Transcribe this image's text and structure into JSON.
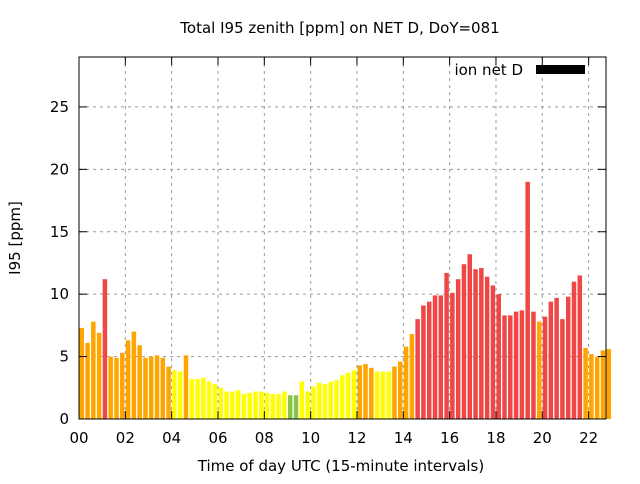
{
  "chart_data": {
    "type": "bar",
    "title": "Total I95 zenith [ppm] on NET D, DoY=081",
    "xlabel": "Time of day UTC (15-minute intervals)",
    "ylabel": "I95 [ppm]",
    "ylim": [
      0,
      29
    ],
    "xlim_hours": [
      0,
      22.75
    ],
    "x_ticks": [
      "00",
      "02",
      "04",
      "06",
      "08",
      "10",
      "12",
      "14",
      "16",
      "18",
      "20",
      "22"
    ],
    "y_ticks": [
      "0",
      "5",
      "10",
      "15",
      "20",
      "25"
    ],
    "grid": true,
    "legend": {
      "label": "ion net D",
      "placement": "top-right",
      "color": "#000000"
    },
    "interval_minutes": 15,
    "values": [
      7.3,
      6.1,
      7.8,
      6.9,
      11.2,
      5.0,
      4.9,
      5.3,
      6.3,
      7.0,
      5.9,
      4.9,
      5.0,
      5.1,
      4.9,
      4.2,
      3.9,
      3.8,
      5.1,
      3.2,
      3.2,
      3.3,
      3.0,
      2.8,
      2.5,
      2.2,
      2.2,
      2.3,
      2.0,
      2.1,
      2.2,
      2.2,
      2.1,
      2.0,
      2.0,
      2.2,
      1.9,
      1.9,
      3.0,
      2.2,
      2.6,
      2.9,
      2.8,
      3.0,
      3.1,
      3.5,
      3.7,
      3.9,
      4.3,
      4.4,
      4.1,
      3.8,
      3.8,
      3.8,
      4.2,
      4.6,
      5.8,
      6.8,
      8.0,
      9.1,
      9.4,
      9.9,
      9.9,
      11.7,
      10.1,
      11.2,
      12.4,
      13.2,
      12.0,
      12.1,
      11.4,
      10.7,
      10.0,
      8.3,
      8.3,
      8.6,
      8.7,
      19.0,
      8.6,
      7.8,
      8.2,
      9.4,
      9.7,
      8.0,
      9.8,
      11.0,
      11.5,
      5.7,
      5.2,
      5.0,
      5.5,
      5.6
    ],
    "color_thresholds": [
      {
        "below": 2,
        "color": "#8bc34a"
      },
      {
        "below": 4,
        "color": "#ffff00"
      },
      {
        "below": 8,
        "color": "#ffa500"
      },
      {
        "below": 999,
        "color": "#ef4646"
      }
    ]
  }
}
